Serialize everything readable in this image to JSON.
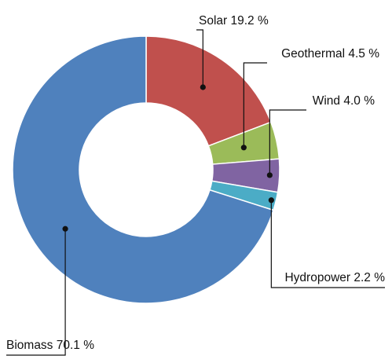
{
  "chart_data": {
    "type": "pie",
    "title": "",
    "donut": true,
    "legend": "none",
    "categories": [
      "Solar",
      "Geothermal",
      "Wind",
      "Hydropower",
      "Biomass"
    ],
    "values": [
      19.2,
      4.5,
      4.0,
      2.2,
      70.1
    ],
    "colors": [
      "#C0504D",
      "#9BBB59",
      "#8064A2",
      "#4BACC6",
      "#4F81BD"
    ],
    "labels": [
      "Solar 19.2 %",
      "Geothermal 4.5 %",
      "Wind 4.0 %",
      "Hydropower 2.2 %",
      "Biomass 70.1 %"
    ]
  }
}
